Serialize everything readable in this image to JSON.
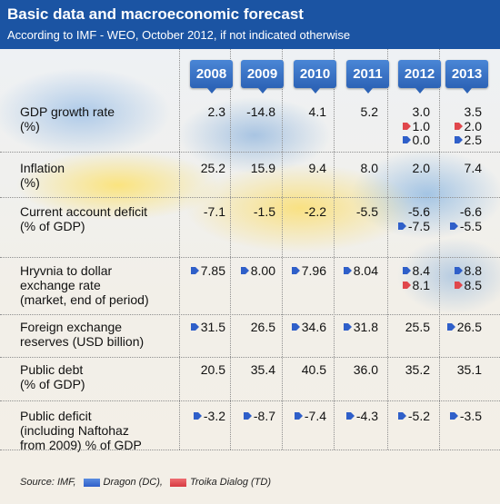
{
  "header": {
    "title": "Basic data and macroeconomic forecast",
    "subtitle": "According to IMF - WEO, October 2012, if not indicated otherwise"
  },
  "years": [
    "2008",
    "2009",
    "2010",
    "2011",
    "2012",
    "2013"
  ],
  "rows": [
    {
      "label": [
        "GDP growth rate",
        "(%)"
      ],
      "cells": [
        [
          "2.3"
        ],
        [
          "-14.8"
        ],
        [
          "4.1"
        ],
        [
          "5.2"
        ],
        [
          "3.0",
          "1.0",
          "0.0"
        ],
        [
          "3.5",
          "2.0",
          "2.5"
        ]
      ]
    },
    {
      "label": [
        "Inflation",
        "(%)"
      ],
      "cells": [
        [
          "25.2"
        ],
        [
          "15.9"
        ],
        [
          "9.4"
        ],
        [
          "8.0"
        ],
        [
          "2.0"
        ],
        [
          "7.4"
        ]
      ]
    },
    {
      "label": [
        "Current account deficit",
        "(% of GDP)"
      ],
      "cells": [
        [
          "-7.1"
        ],
        [
          "-1.5"
        ],
        [
          "-2.2"
        ],
        [
          "-5.5"
        ],
        [
          "-5.6",
          "-7.5"
        ],
        [
          "-6.6",
          "-5.5"
        ]
      ]
    },
    {
      "label": [
        "Hryvnia to dollar",
        "exchange rate",
        "(market, end of period)"
      ],
      "cells": [
        [
          "7.85"
        ],
        [
          "8.00"
        ],
        [
          "7.96"
        ],
        [
          "8.04"
        ],
        [
          "8.4",
          "8.1"
        ],
        [
          "8.8",
          "8.5"
        ]
      ]
    },
    {
      "label": [
        "Foreign exchange",
        "reserves (USD billion)"
      ],
      "cells": [
        [
          "31.5"
        ],
        [
          "26.5"
        ],
        [
          "34.6"
        ],
        [
          "31.8"
        ],
        [
          "25.5"
        ],
        [
          "26.5"
        ]
      ]
    },
    {
      "label": [
        "Public debt",
        "(% of GDP)"
      ],
      "cells": [
        [
          "20.5"
        ],
        [
          "35.4"
        ],
        [
          "40.5"
        ],
        [
          "36.0"
        ],
        [
          "35.2"
        ],
        [
          "35.1"
        ]
      ]
    },
    {
      "label": [
        "Public deficit",
        "(including Naftohaz",
        "from 2009) % of GDP"
      ],
      "cells": [
        [
          "-3.2"
        ],
        [
          "-8.7"
        ],
        [
          "-7.4"
        ],
        [
          "-4.3"
        ],
        [
          "-5.2"
        ],
        [
          "-3.5"
        ]
      ]
    }
  ],
  "legend": {
    "source": "Source: IMF,",
    "dragon": "Dragon (DC),",
    "troika": "Troika Dialog (TD)"
  },
  "colors": {
    "header_bg": "#1b54a3",
    "dragon_marker": "#2f5fc9",
    "troika_marker": "#e0474c"
  }
}
